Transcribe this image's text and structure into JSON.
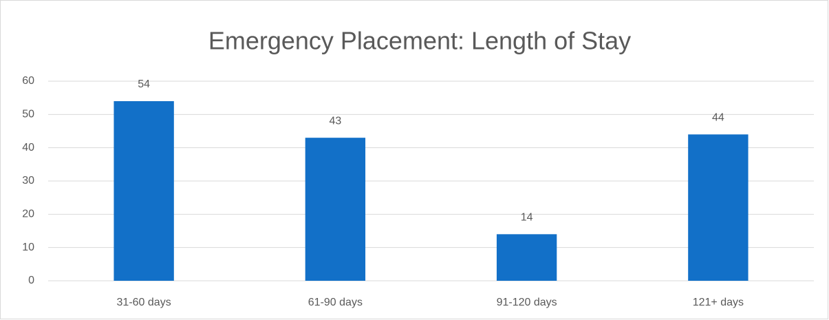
{
  "chart_data": {
    "type": "bar",
    "title": "Emergency Placement: Length of Stay",
    "categories": [
      "31-60 days",
      "61-90 days",
      "91-120 days",
      "121+ days"
    ],
    "values": [
      54,
      43,
      14,
      44
    ],
    "color": "#1270c8",
    "ylim": [
      0,
      60
    ],
    "yticks": [
      0,
      10,
      20,
      30,
      40,
      50,
      60
    ],
    "grid": true,
    "data_labels": true
  }
}
